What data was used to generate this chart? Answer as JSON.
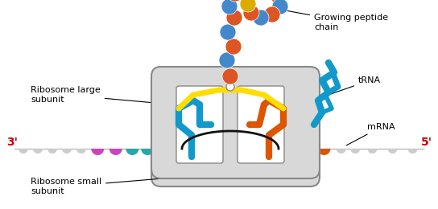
{
  "bg_color": "#ffffff",
  "ribosome_color": "#d8d8d8",
  "ribosome_edge": "#888888",
  "slot_color": "#f0f0f0",
  "slot_edge": "#888888",
  "mrna_base_color": "#cccccc",
  "mrna_purple": "#cc44bb",
  "mrna_teal": "#22aaaa",
  "mrna_orange": "#dd5500",
  "label_large": "Ribosome large\nsubunit",
  "label_small": "Ribosome small\nsubunit",
  "label_peptide": "Growing peptide\nchain",
  "label_trna": "tRNA",
  "label_mrna": "mRNA",
  "label_3prime": "3'",
  "label_5prime": "5'",
  "text_color": "#000000",
  "red_label_color": "#cc0000",
  "blue_bead": "#4488cc",
  "orange_bead": "#dd5522",
  "yellow_bead": "#ddaa00",
  "trna_blue": "#1199cc",
  "trna_orange": "#dd5500",
  "yellow_bridge": "#ffdd00",
  "black_arc": "#111111"
}
